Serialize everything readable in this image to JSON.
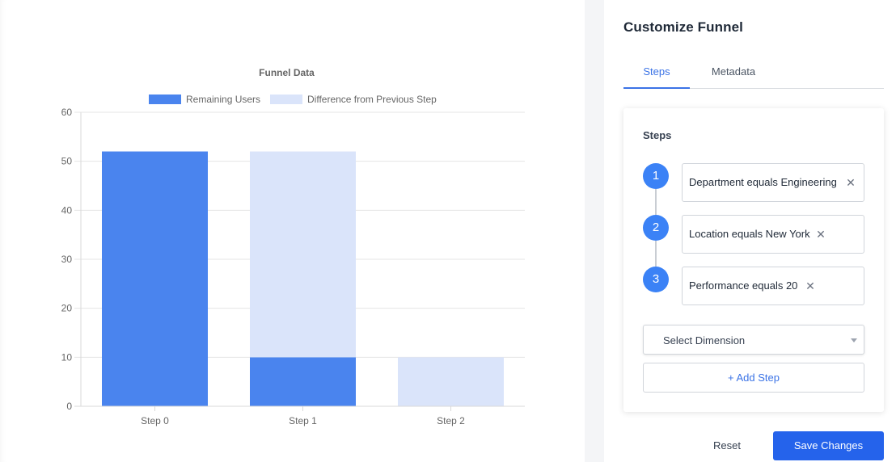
{
  "panel": {
    "title": "Customize Funnel",
    "tabs": [
      {
        "label": "Steps",
        "active": true
      },
      {
        "label": "Metadata",
        "active": false
      }
    ],
    "steps_heading": "Steps",
    "steps": [
      {
        "number": "1",
        "label": "Department equals Engineering"
      },
      {
        "number": "2",
        "label": "Location equals New York"
      },
      {
        "number": "3",
        "label": "Performance equals 20"
      }
    ],
    "select": {
      "value": "Select Dimension"
    },
    "add_step_label": "+ Add Step",
    "reset_label": "Reset",
    "save_label": "Save Changes"
  },
  "colors": {
    "primary": "#2563eb",
    "remaining": "#4a84ee",
    "difference": "#dae4fa",
    "step_circle": "#3b82f6"
  },
  "icons": {
    "remove": "close-icon",
    "dropdown": "chevron-down-icon"
  },
  "chart_data": {
    "type": "bar",
    "stacked": true,
    "title": "Funnel Data",
    "categories": [
      "Step 0",
      "Step 1",
      "Step 2"
    ],
    "series": [
      {
        "name": "Remaining Users",
        "values": [
          52,
          10,
          0
        ],
        "color": "#4a84ee"
      },
      {
        "name": "Difference from Previous Step",
        "values": [
          0,
          42,
          10
        ],
        "color": "#dae4fa"
      }
    ],
    "ylim": [
      0,
      60
    ],
    "yticks": [
      0,
      10,
      20,
      30,
      40,
      50,
      60
    ],
    "grid": true,
    "legend": "top"
  }
}
